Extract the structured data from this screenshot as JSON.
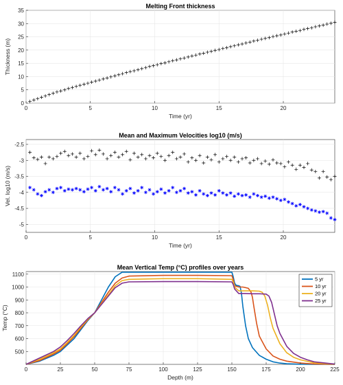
{
  "chart_data": [
    {
      "type": "scatter",
      "title": "Melting Front thickness",
      "xlabel": "Time (yr)",
      "ylabel": "Thickness (m)",
      "xlim": [
        0,
        24
      ],
      "ylim": [
        0,
        35
      ],
      "xticks": [
        0,
        5,
        10,
        15,
        20
      ],
      "yticks": [
        0,
        5,
        10,
        15,
        20,
        25,
        30,
        35
      ],
      "xtick_labels": [
        "0",
        "5",
        "10",
        "15",
        "20"
      ],
      "ytick_labels": [
        "0",
        "5",
        "10",
        "15",
        "20",
        "25",
        "30",
        "35"
      ],
      "grid": true,
      "series": [
        {
          "marker": "plus",
          "color": "#000000",
          "x": [
            0.3,
            0.6,
            0.9,
            1.2,
            1.5,
            1.8,
            2.1,
            2.4,
            2.7,
            3.0,
            3.3,
            3.6,
            3.9,
            4.2,
            4.5,
            4.8,
            5.1,
            5.4,
            5.7,
            6.0,
            6.3,
            6.6,
            6.9,
            7.2,
            7.5,
            7.8,
            8.1,
            8.4,
            8.7,
            9.0,
            9.3,
            9.6,
            9.9,
            10.2,
            10.5,
            10.8,
            11.1,
            11.4,
            11.7,
            12.0,
            12.3,
            12.6,
            12.9,
            13.2,
            13.5,
            13.8,
            14.1,
            14.4,
            14.7,
            15.0,
            15.3,
            15.6,
            15.9,
            16.2,
            16.5,
            16.8,
            17.1,
            17.4,
            17.7,
            18.0,
            18.3,
            18.6,
            18.9,
            19.2,
            19.5,
            19.8,
            20.1,
            20.4,
            20.7,
            21.0,
            21.3,
            21.6,
            21.9,
            22.2,
            22.5,
            22.8,
            23.1,
            23.4,
            23.7,
            24.0
          ],
          "y": [
            0.6,
            1.2,
            1.7,
            2.2,
            2.7,
            3.2,
            3.7,
            4.2,
            4.6,
            5.0,
            5.5,
            5.9,
            6.3,
            6.7,
            7.1,
            7.5,
            7.9,
            8.3,
            8.7,
            9.1,
            9.5,
            9.9,
            10.3,
            10.7,
            11.1,
            11.5,
            11.9,
            12.2,
            12.6,
            13.0,
            13.4,
            13.8,
            14.1,
            14.5,
            14.9,
            15.2,
            15.6,
            16.0,
            16.3,
            16.7,
            17.0,
            17.4,
            17.8,
            18.1,
            18.5,
            18.8,
            19.2,
            19.5,
            19.9,
            20.2,
            20.6,
            20.9,
            21.3,
            21.6,
            22.0,
            22.3,
            22.7,
            23.0,
            23.4,
            23.7,
            24.1,
            24.4,
            24.7,
            25.1,
            25.4,
            25.7,
            26.1,
            26.4,
            26.8,
            27.1,
            27.4,
            27.8,
            28.1,
            28.4,
            28.8,
            29.1,
            29.4,
            29.8,
            30.1,
            30.5
          ]
        }
      ]
    },
    {
      "type": "scatter",
      "title": "Mean and Maximum Velocities log10 (m/s)",
      "xlabel": "Time (yr)",
      "ylabel": "Vel. log10 (m/s)",
      "xlim": [
        0,
        24
      ],
      "ylim": [
        -5.25,
        -2.35
      ],
      "xticks": [
        0,
        5,
        10,
        15,
        20
      ],
      "yticks": [
        -5,
        -4.5,
        -4,
        -3.5,
        -3,
        -2.5
      ],
      "xtick_labels": [
        "0",
        "5",
        "10",
        "15",
        "20"
      ],
      "ytick_labels": [
        "-5",
        "-4.5",
        "-4",
        "-3.5",
        "-3",
        "-2.5"
      ],
      "grid": true,
      "series": [
        {
          "marker": "plus",
          "color": "#000000",
          "x": [
            0.3,
            0.6,
            0.9,
            1.2,
            1.5,
            1.8,
            2.1,
            2.4,
            2.7,
            3.0,
            3.3,
            3.6,
            3.9,
            4.2,
            4.5,
            4.8,
            5.1,
            5.4,
            5.7,
            6.0,
            6.3,
            6.6,
            6.9,
            7.2,
            7.5,
            7.8,
            8.1,
            8.4,
            8.7,
            9.0,
            9.3,
            9.6,
            9.9,
            10.2,
            10.5,
            10.8,
            11.1,
            11.4,
            11.7,
            12.0,
            12.3,
            12.6,
            12.9,
            13.2,
            13.5,
            13.8,
            14.1,
            14.4,
            14.7,
            15.0,
            15.3,
            15.6,
            15.9,
            16.2,
            16.5,
            16.8,
            17.1,
            17.4,
            17.7,
            18.0,
            18.3,
            18.6,
            18.9,
            19.2,
            19.5,
            19.8,
            20.1,
            20.4,
            20.7,
            21.0,
            21.3,
            21.6,
            21.9,
            22.2,
            22.5,
            22.8,
            23.1,
            23.4,
            23.7,
            24.0
          ],
          "y": [
            -2.75,
            -2.92,
            -2.97,
            -2.9,
            -3.1,
            -2.9,
            -2.95,
            -2.88,
            -2.78,
            -2.72,
            -2.85,
            -2.8,
            -2.9,
            -2.78,
            -2.95,
            -2.88,
            -2.7,
            -2.82,
            -2.68,
            -2.8,
            -2.95,
            -2.85,
            -2.75,
            -2.9,
            -2.82,
            -2.72,
            -2.98,
            -2.78,
            -2.9,
            -2.82,
            -2.95,
            -2.85,
            -2.92,
            -2.78,
            -2.88,
            -3.0,
            -2.85,
            -2.75,
            -2.95,
            -2.9,
            -2.8,
            -3.05,
            -2.92,
            -3.0,
            -2.85,
            -3.08,
            -2.9,
            -2.98,
            -2.82,
            -3.05,
            -2.95,
            -2.88,
            -3.0,
            -2.9,
            -3.05,
            -2.95,
            -2.92,
            -3.08,
            -3.0,
            -2.95,
            -3.1,
            -3.02,
            -3.12,
            -2.98,
            -3.08,
            -3.1,
            -3.2,
            -3.05,
            -3.15,
            -3.28,
            -3.15,
            -3.22,
            -3.1,
            -3.3,
            -3.35,
            -3.55,
            -3.35,
            -3.52,
            -3.6,
            -3.5
          ]
        },
        {
          "marker": "star",
          "color": "#0000FF",
          "x": [
            0.3,
            0.6,
            0.9,
            1.2,
            1.5,
            1.8,
            2.1,
            2.4,
            2.7,
            3.0,
            3.3,
            3.6,
            3.9,
            4.2,
            4.5,
            4.8,
            5.1,
            5.4,
            5.7,
            6.0,
            6.3,
            6.6,
            6.9,
            7.2,
            7.5,
            7.8,
            8.1,
            8.4,
            8.7,
            9.0,
            9.3,
            9.6,
            9.9,
            10.2,
            10.5,
            10.8,
            11.1,
            11.4,
            11.7,
            12.0,
            12.3,
            12.6,
            12.9,
            13.2,
            13.5,
            13.8,
            14.1,
            14.4,
            14.7,
            15.0,
            15.3,
            15.6,
            15.9,
            16.2,
            16.5,
            16.8,
            17.1,
            17.4,
            17.7,
            18.0,
            18.3,
            18.6,
            18.9,
            19.2,
            19.5,
            19.8,
            20.1,
            20.4,
            20.7,
            21.0,
            21.3,
            21.6,
            21.9,
            22.2,
            22.5,
            22.8,
            23.1,
            23.4,
            23.7,
            24.0
          ],
          "y": [
            -3.85,
            -3.92,
            -4.05,
            -4.1,
            -3.98,
            -3.92,
            -4.0,
            -3.88,
            -3.85,
            -3.95,
            -3.9,
            -3.92,
            -3.88,
            -3.92,
            -3.98,
            -3.9,
            -3.85,
            -3.95,
            -3.82,
            -3.92,
            -3.88,
            -3.98,
            -3.85,
            -3.92,
            -4.05,
            -3.95,
            -3.88,
            -4.02,
            -3.95,
            -3.85,
            -4.0,
            -3.92,
            -4.05,
            -3.98,
            -3.9,
            -4.02,
            -3.95,
            -3.85,
            -4.0,
            -3.95,
            -3.88,
            -4.02,
            -3.98,
            -4.08,
            -3.95,
            -4.05,
            -4.1,
            -4.02,
            -4.08,
            -3.95,
            -4.02,
            -4.08,
            -4.02,
            -4.12,
            -4.05,
            -4.1,
            -4.08,
            -4.15,
            -4.05,
            -4.1,
            -4.15,
            -4.12,
            -4.18,
            -4.15,
            -4.2,
            -4.25,
            -4.22,
            -4.3,
            -4.35,
            -4.42,
            -4.38,
            -4.45,
            -4.5,
            -4.55,
            -4.58,
            -4.62,
            -4.6,
            -4.65,
            -4.8,
            -4.85
          ]
        }
      ]
    },
    {
      "type": "line",
      "title": "Mean Vertical Temp (°C) profiles over years",
      "xlabel": "Depth (m)",
      "ylabel": "Temp (°C)",
      "xlim": [
        0,
        225
      ],
      "ylim": [
        400,
        1120
      ],
      "xticks": [
        0,
        25,
        50,
        75,
        100,
        125,
        150,
        175,
        200,
        225
      ],
      "yticks": [
        500,
        600,
        700,
        800,
        900,
        1000,
        1100
      ],
      "xtick_labels": [
        "0",
        "25",
        "50",
        "75",
        "100",
        "125",
        "150",
        "175",
        "200",
        "225"
      ],
      "ytick_labels": [
        "500",
        "600",
        "700",
        "800",
        "900",
        "1000",
        "1100"
      ],
      "grid": true,
      "legend": "top-right",
      "series": [
        {
          "name": "5 yr",
          "color": "#0072BD",
          "x": [
            0,
            10,
            20,
            25,
            30,
            35,
            40,
            45,
            50,
            55,
            60,
            65,
            70,
            100,
            125,
            150,
            151,
            152,
            153,
            154,
            155,
            156,
            157,
            158,
            160,
            162,
            165,
            170,
            175,
            180,
            185,
            190,
            200,
            210,
            225
          ],
          "y": [
            400,
            425,
            470,
            500,
            550,
            600,
            670,
            740,
            800,
            900,
            1000,
            1080,
            1115,
            1115,
            1115,
            1115,
            1080,
            1030,
            1015,
            1012,
            1010,
            1005,
            950,
            850,
            700,
            600,
            530,
            470,
            440,
            420,
            410,
            405,
            401,
            400,
            400
          ]
        },
        {
          "name": "10 yr",
          "color": "#D95319",
          "x": [
            0,
            10,
            20,
            25,
            30,
            35,
            40,
            45,
            50,
            55,
            60,
            65,
            70,
            75,
            100,
            125,
            150,
            151,
            152,
            155,
            158,
            160,
            162,
            164,
            165,
            166,
            168,
            170,
            175,
            180,
            185,
            190,
            200,
            210,
            225
          ],
          "y": [
            400,
            430,
            480,
            510,
            560,
            615,
            680,
            745,
            800,
            880,
            960,
            1030,
            1070,
            1085,
            1090,
            1090,
            1088,
            1060,
            1010,
            1000,
            1000,
            995,
            990,
            960,
            920,
            850,
            720,
            620,
            520,
            465,
            440,
            425,
            410,
            403,
            400
          ]
        },
        {
          "name": "20 yr",
          "color": "#EDB120",
          "x": [
            0,
            10,
            20,
            25,
            30,
            35,
            40,
            45,
            50,
            55,
            60,
            65,
            70,
            75,
            100,
            125,
            150,
            151,
            152,
            155,
            160,
            165,
            170,
            172,
            174,
            176,
            178,
            180,
            185,
            190,
            195,
            200,
            210,
            225
          ],
          "y": [
            400,
            440,
            490,
            520,
            570,
            625,
            690,
            750,
            800,
            870,
            940,
            1010,
            1050,
            1060,
            1065,
            1065,
            1060,
            1040,
            1000,
            970,
            970,
            970,
            968,
            960,
            930,
            860,
            760,
            680,
            560,
            490,
            455,
            435,
            412,
            401
          ]
        },
        {
          "name": "25 yr",
          "color": "#7E2F8E",
          "x": [
            0,
            10,
            20,
            25,
            30,
            35,
            40,
            45,
            50,
            55,
            60,
            65,
            70,
            75,
            100,
            125,
            150,
            151,
            152,
            155,
            160,
            165,
            170,
            175,
            177,
            179,
            181,
            183,
            185,
            190,
            195,
            200,
            205,
            210,
            225
          ],
          "y": [
            400,
            450,
            500,
            535,
            585,
            640,
            700,
            755,
            800,
            865,
            930,
            995,
            1030,
            1040,
            1042,
            1042,
            1040,
            1020,
            985,
            950,
            950,
            948,
            948,
            945,
            930,
            880,
            790,
            700,
            640,
            540,
            485,
            455,
            435,
            420,
            402
          ]
        }
      ]
    }
  ]
}
